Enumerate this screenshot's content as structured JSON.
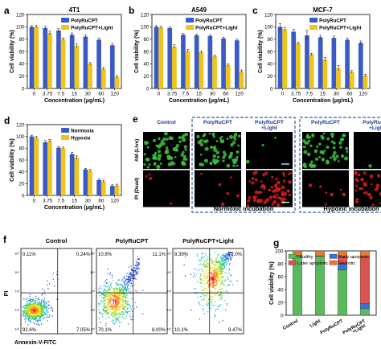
{
  "colors": {
    "blue": "#3a5bc7",
    "yellow": "#f0c419",
    "healthy": "#5cb85c",
    "early": "#3b6fd6",
    "later": "#d9534f",
    "necrotic": "#e87a2e",
    "cell_green": "#3fbf3f",
    "cell_red": "#d41c1c",
    "dash_blue": "#2f5fa8"
  },
  "chart_data": [
    {
      "id": "a",
      "type": "bar",
      "panel_letter": "a",
      "title": "4T1",
      "categories": [
        "0",
        "3.75",
        "7.5",
        "15",
        "30",
        "60",
        "120"
      ],
      "xlabel": "Concentration (μg/mL)",
      "ylabel": "Cell viability (%)",
      "ylim": [
        0,
        120
      ],
      "yticks": [
        0,
        20,
        40,
        60,
        80,
        100,
        120
      ],
      "legend_position": "top-right",
      "series": [
        {
          "name": "PolyRuCPT",
          "color_key": "blue",
          "values": [
            100,
            98,
            94,
            87,
            84,
            79,
            70
          ],
          "errors": [
            2,
            3,
            3,
            3,
            3,
            3,
            3
          ]
        },
        {
          "name": "PolyRuCPT+Light",
          "color_key": "yellow",
          "values": [
            100,
            90,
            80,
            69,
            40,
            32,
            19
          ],
          "errors": [
            2,
            3,
            2,
            3,
            2,
            2,
            2
          ]
        }
      ]
    },
    {
      "id": "b",
      "type": "bar",
      "panel_letter": "b",
      "title": "A549",
      "categories": [
        "0",
        "3.75",
        "7.5",
        "15",
        "30",
        "60",
        "120"
      ],
      "xlabel": "Concentration (μg/mL)",
      "ylabel": "Cell viability (%)",
      "ylim": [
        0,
        120
      ],
      "yticks": [
        0,
        20,
        40,
        60,
        80,
        100,
        120
      ],
      "legend_position": "top-right",
      "series": [
        {
          "name": "PolyRuCPT",
          "color_key": "blue",
          "values": [
            100,
            98,
            87,
            86,
            85,
            81,
            78
          ],
          "errors": [
            2,
            2,
            2,
            2,
            2,
            2,
            2
          ]
        },
        {
          "name": "PolyRuCPT+Light",
          "color_key": "yellow",
          "values": [
            99,
            68,
            61,
            59,
            52,
            38,
            28
          ],
          "errors": [
            2,
            3,
            2,
            2,
            2,
            2,
            2
          ]
        }
      ]
    },
    {
      "id": "c",
      "type": "bar",
      "panel_letter": "c",
      "title": "MCF-7",
      "categories": [
        "0",
        "3.75",
        "7.5",
        "15",
        "30",
        "60",
        "120"
      ],
      "xlabel": "Concentration (μg/mL)",
      "ylabel": "Cell viability (%)",
      "ylim": [
        0,
        120
      ],
      "yticks": [
        0,
        20,
        40,
        60,
        80,
        100,
        120
      ],
      "legend_position": "top-right",
      "series": [
        {
          "name": "PolyRuCPT",
          "color_key": "blue",
          "values": [
            100,
            92,
            86,
            83,
            82,
            79,
            74
          ],
          "errors": [
            5,
            4,
            8,
            3,
            3,
            3,
            3
          ]
        },
        {
          "name": "PolyRuCPT+Light",
          "color_key": "yellow",
          "values": [
            96,
            73,
            55,
            47,
            33,
            27,
            21
          ],
          "errors": [
            3,
            2,
            2,
            3,
            4,
            2,
            2
          ]
        }
      ]
    },
    {
      "id": "d",
      "type": "bar",
      "panel_letter": "d",
      "title": "",
      "categories": [
        "0",
        "3.75",
        "7.5",
        "15",
        "30",
        "60",
        "120"
      ],
      "xlabel": "Concentration (μg/mL)",
      "ylabel": "Cell viability (%)",
      "ylim": [
        0,
        120
      ],
      "yticks": [
        0,
        20,
        40,
        60,
        80,
        100,
        120
      ],
      "legend_position": "top-right",
      "series": [
        {
          "name": "Normoxia",
          "color_key": "blue",
          "values": [
            100,
            90,
            81,
            70,
            44,
            26,
            16
          ],
          "errors": [
            2,
            3,
            2,
            3,
            2,
            2,
            2
          ]
        },
        {
          "name": "Hypoxia",
          "color_key": "yellow",
          "values": [
            98,
            93,
            80,
            64,
            42,
            24,
            17
          ],
          "errors": [
            2,
            2,
            2,
            3,
            2,
            2,
            2
          ]
        }
      ]
    },
    {
      "id": "g",
      "type": "bar",
      "stacked": true,
      "panel_letter": "g",
      "title": "",
      "categories": [
        "Control",
        "Light",
        "PolyRuCPT",
        "PolyRuCPT\n+Light"
      ],
      "xlabel": "",
      "ylabel": "Cell viability (%)",
      "ylim": [
        0,
        100
      ],
      "yticks": [
        0,
        20,
        40,
        60,
        80,
        100
      ],
      "legend_position": "top",
      "series": [
        {
          "name": "Healthy",
          "color_key": "healthy",
          "values": [
            92.6,
            91.5,
            70.1,
            10.1
          ]
        },
        {
          "name": "Early apoptotic",
          "color_key": "early",
          "values": [
            0.11,
            0.3,
            10.8,
            8.4
          ]
        },
        {
          "name": "Later apoptotic",
          "color_key": "later",
          "values": [
            0.24,
            0.5,
            11.1,
            72.0
          ]
        },
        {
          "name": "Necrotic",
          "color_key": "necrotic",
          "values": [
            7.05,
            7.7,
            8.0,
            9.5
          ]
        }
      ]
    }
  ],
  "panel_e": {
    "letter": "e",
    "columns": [
      "Control",
      "PolyRuCPT",
      "PolyRuCPT\n+Light",
      "PolyRuCPT",
      "PolyRuCPT\n+Light"
    ],
    "rows": [
      "AM (Live)",
      "PI (Dead)"
    ],
    "normoxic_label": "Normoxic incubation",
    "hypoxic_label": "Hypoxic incubation"
  },
  "panel_f": {
    "letter": "f",
    "xlabel": "Annexin-V-FITC",
    "ylabel": "PI",
    "plots": [
      {
        "title": "Control",
        "q_ul": "0.11%",
        "q_ur": "0.24%",
        "q_ll": "92.6%",
        "q_lr": "7.05%"
      },
      {
        "title": "PolyRuCPT",
        "q_ul": "10.8%",
        "q_ur": "11.1%",
        "q_ll": "70.1%",
        "q_lr": "8.00%"
      },
      {
        "title": "PolyRuCPT+Light",
        "q_ul": "8.39%",
        "q_ur": "72.0%",
        "q_ll": "10.1%",
        "q_lr": "9.47%"
      }
    ],
    "axis_ticks": [
      "10⁵",
      "10⁴",
      "10³",
      "10²",
      "10¹"
    ]
  }
}
